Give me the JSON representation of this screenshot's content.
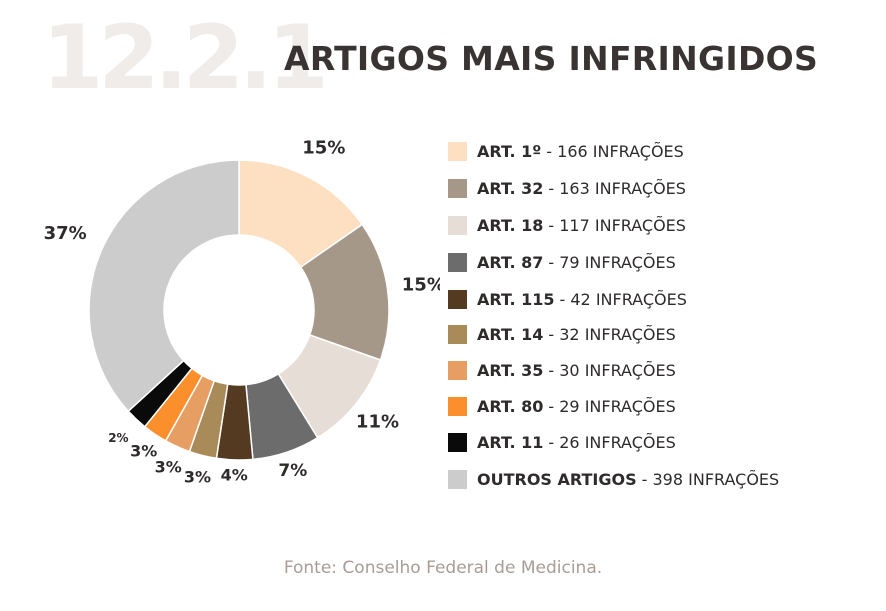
{
  "header": {
    "section_number": "12.2.1",
    "title": "ARTIGOS MAIS INFRINGIDOS"
  },
  "chart_data": {
    "type": "pie",
    "style": "donut",
    "unit": "INFRAÇÕES",
    "slices": [
      {
        "label": "ART. 1º",
        "value": 166,
        "value_text": "- 166 INFRAÇÕES",
        "percent_label": "15%",
        "color": "#fde0c1"
      },
      {
        "label": "ART. 32",
        "value": 163,
        "value_text": "- 163 INFRAÇÕES",
        "percent_label": "15%",
        "color": "#a69888"
      },
      {
        "label": "ART. 18",
        "value": 117,
        "value_text": "- 117 INFRAÇÕES",
        "percent_label": "11%",
        "color": "#e6ddd7"
      },
      {
        "label": "ART. 87",
        "value": 79,
        "value_text": "- 79 INFRAÇÕES",
        "percent_label": "7%",
        "color": "#6c6c6c"
      },
      {
        "label": "ART. 115",
        "value": 42,
        "value_text": "- 42 INFRAÇÕES",
        "percent_label": "4%",
        "color": "#553a22"
      },
      {
        "label": "ART. 14",
        "value": 32,
        "value_text": "- 32 INFRAÇÕES",
        "percent_label": "3%",
        "color": "#a88b59"
      },
      {
        "label": "ART. 35",
        "value": 30,
        "value_text": "- 30 INFRAÇÕES",
        "percent_label": "3%",
        "color": "#e69e63"
      },
      {
        "label": "ART. 80",
        "value": 29,
        "value_text": "- 29 INFRAÇÕES",
        "percent_label": "3%",
        "color": "#fb8f2b"
      },
      {
        "label": "ART. 11",
        "value": 26,
        "value_text": "- 26 INFRAÇÕES",
        "percent_label": "2%",
        "color": "#0a0a0a"
      },
      {
        "label": "OUTROS ARTIGOS",
        "value": 398,
        "value_text": "- 398 INFRAÇÕES",
        "percent_label": "37%",
        "color": "#cccccc"
      }
    ],
    "legend_position": "right"
  },
  "footer": {
    "source": "Fonte: Conselho Federal de Medicina."
  }
}
